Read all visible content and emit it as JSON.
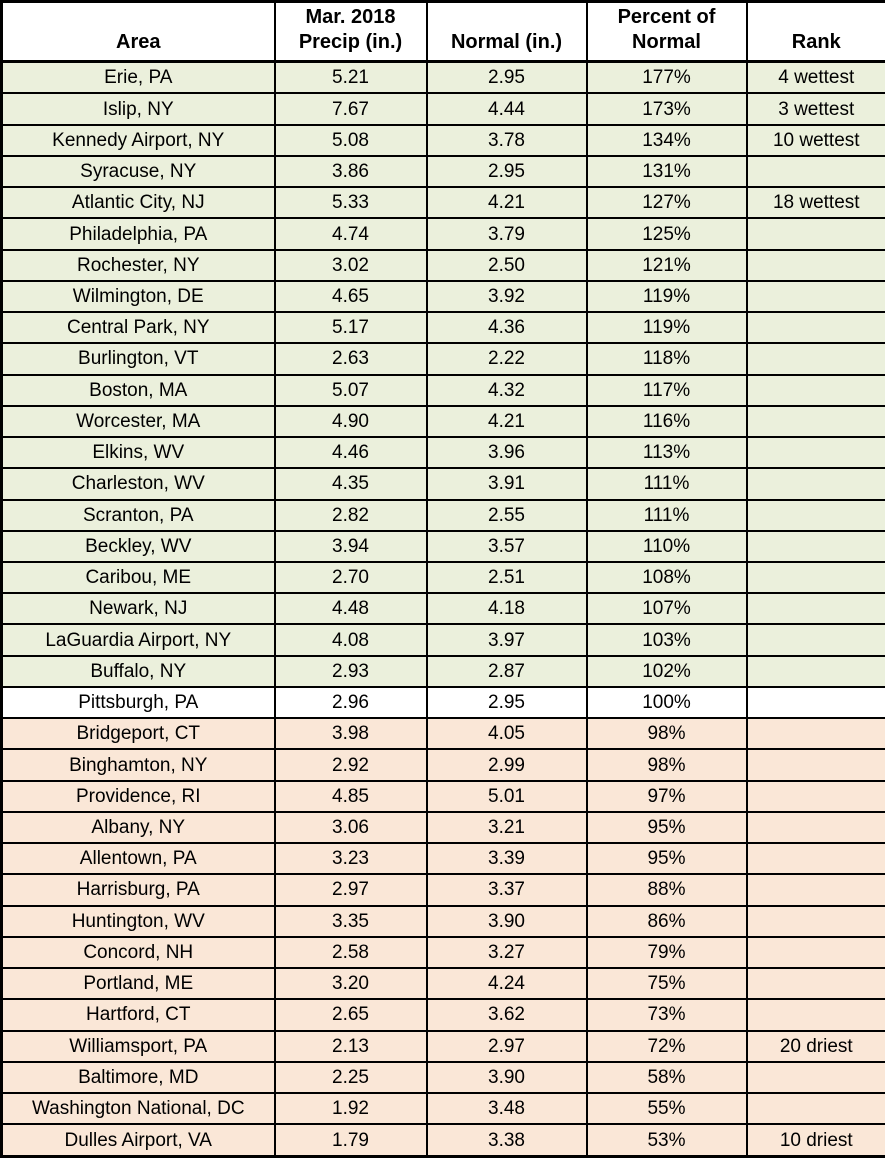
{
  "colors": {
    "above_normal_row": "#EBF0DC",
    "at_normal_row": "#FFFFFF",
    "below_normal_row": "#FAE7D7",
    "border": "#000000",
    "text": "#000000"
  },
  "chart_data": {
    "type": "table",
    "columns": [
      "Area",
      "Mar. 2018\nPrecip (in.)",
      "Normal (in.)",
      "Percent of\nNormal",
      "Rank"
    ],
    "rows": [
      {
        "area": "Erie, PA",
        "precip": "5.21",
        "normal": "2.95",
        "percent": "177%",
        "rank": "4 wettest",
        "tone": "above-normal"
      },
      {
        "area": "Islip, NY",
        "precip": "7.67",
        "normal": "4.44",
        "percent": "173%",
        "rank": "3 wettest",
        "tone": "above-normal"
      },
      {
        "area": "Kennedy Airport, NY",
        "precip": "5.08",
        "normal": "3.78",
        "percent": "134%",
        "rank": "10 wettest",
        "tone": "above-normal"
      },
      {
        "area": "Syracuse, NY",
        "precip": "3.86",
        "normal": "2.95",
        "percent": "131%",
        "rank": "",
        "tone": "above-normal"
      },
      {
        "area": "Atlantic City, NJ",
        "precip": "5.33",
        "normal": "4.21",
        "percent": "127%",
        "rank": "18 wettest",
        "tone": "above-normal"
      },
      {
        "area": "Philadelphia, PA",
        "precip": "4.74",
        "normal": "3.79",
        "percent": "125%",
        "rank": "",
        "tone": "above-normal"
      },
      {
        "area": "Rochester, NY",
        "precip": "3.02",
        "normal": "2.50",
        "percent": "121%",
        "rank": "",
        "tone": "above-normal"
      },
      {
        "area": "Wilmington, DE",
        "precip": "4.65",
        "normal": "3.92",
        "percent": "119%",
        "rank": "",
        "tone": "above-normal"
      },
      {
        "area": "Central Park, NY",
        "precip": "5.17",
        "normal": "4.36",
        "percent": "119%",
        "rank": "",
        "tone": "above-normal"
      },
      {
        "area": "Burlington, VT",
        "precip": "2.63",
        "normal": "2.22",
        "percent": "118%",
        "rank": "",
        "tone": "above-normal"
      },
      {
        "area": "Boston, MA",
        "precip": "5.07",
        "normal": "4.32",
        "percent": "117%",
        "rank": "",
        "tone": "above-normal"
      },
      {
        "area": "Worcester, MA",
        "precip": "4.90",
        "normal": "4.21",
        "percent": "116%",
        "rank": "",
        "tone": "above-normal"
      },
      {
        "area": "Elkins, WV",
        "precip": "4.46",
        "normal": "3.96",
        "percent": "113%",
        "rank": "",
        "tone": "above-normal"
      },
      {
        "area": "Charleston, WV",
        "precip": "4.35",
        "normal": "3.91",
        "percent": "111%",
        "rank": "",
        "tone": "above-normal"
      },
      {
        "area": "Scranton, PA",
        "precip": "2.82",
        "normal": "2.55",
        "percent": "111%",
        "rank": "",
        "tone": "above-normal"
      },
      {
        "area": "Beckley, WV",
        "precip": "3.94",
        "normal": "3.57",
        "percent": "110%",
        "rank": "",
        "tone": "above-normal"
      },
      {
        "area": "Caribou, ME",
        "precip": "2.70",
        "normal": "2.51",
        "percent": "108%",
        "rank": "",
        "tone": "above-normal"
      },
      {
        "area": "Newark, NJ",
        "precip": "4.48",
        "normal": "4.18",
        "percent": "107%",
        "rank": "",
        "tone": "above-normal"
      },
      {
        "area": "LaGuardia Airport, NY",
        "precip": "4.08",
        "normal": "3.97",
        "percent": "103%",
        "rank": "",
        "tone": "above-normal"
      },
      {
        "area": "Buffalo, NY",
        "precip": "2.93",
        "normal": "2.87",
        "percent": "102%",
        "rank": "",
        "tone": "above-normal"
      },
      {
        "area": "Pittsburgh, PA",
        "precip": "2.96",
        "normal": "2.95",
        "percent": "100%",
        "rank": "",
        "tone": "at-normal"
      },
      {
        "area": "Bridgeport, CT",
        "precip": "3.98",
        "normal": "4.05",
        "percent": "98%",
        "rank": "",
        "tone": "below-normal"
      },
      {
        "area": "Binghamton, NY",
        "precip": "2.92",
        "normal": "2.99",
        "percent": "98%",
        "rank": "",
        "tone": "below-normal"
      },
      {
        "area": "Providence, RI",
        "precip": "4.85",
        "normal": "5.01",
        "percent": "97%",
        "rank": "",
        "tone": "below-normal"
      },
      {
        "area": "Albany, NY",
        "precip": "3.06",
        "normal": "3.21",
        "percent": "95%",
        "rank": "",
        "tone": "below-normal"
      },
      {
        "area": "Allentown, PA",
        "precip": "3.23",
        "normal": "3.39",
        "percent": "95%",
        "rank": "",
        "tone": "below-normal"
      },
      {
        "area": "Harrisburg, PA",
        "precip": "2.97",
        "normal": "3.37",
        "percent": "88%",
        "rank": "",
        "tone": "below-normal"
      },
      {
        "area": "Huntington, WV",
        "precip": "3.35",
        "normal": "3.90",
        "percent": "86%",
        "rank": "",
        "tone": "below-normal"
      },
      {
        "area": "Concord, NH",
        "precip": "2.58",
        "normal": "3.27",
        "percent": "79%",
        "rank": "",
        "tone": "below-normal"
      },
      {
        "area": "Portland, ME",
        "precip": "3.20",
        "normal": "4.24",
        "percent": "75%",
        "rank": "",
        "tone": "below-normal"
      },
      {
        "area": "Hartford, CT",
        "precip": "2.65",
        "normal": "3.62",
        "percent": "73%",
        "rank": "",
        "tone": "below-normal"
      },
      {
        "area": "Williamsport, PA",
        "precip": "2.13",
        "normal": "2.97",
        "percent": "72%",
        "rank": "20 driest",
        "tone": "below-normal"
      },
      {
        "area": "Baltimore, MD",
        "precip": "2.25",
        "normal": "3.90",
        "percent": "58%",
        "rank": "",
        "tone": "below-normal"
      },
      {
        "area": "Washington National, DC",
        "precip": "1.92",
        "normal": "3.48",
        "percent": "55%",
        "rank": "",
        "tone": "below-normal"
      },
      {
        "area": "Dulles Airport, VA",
        "precip": "1.79",
        "normal": "3.38",
        "percent": "53%",
        "rank": "10 driest",
        "tone": "below-normal"
      }
    ]
  }
}
